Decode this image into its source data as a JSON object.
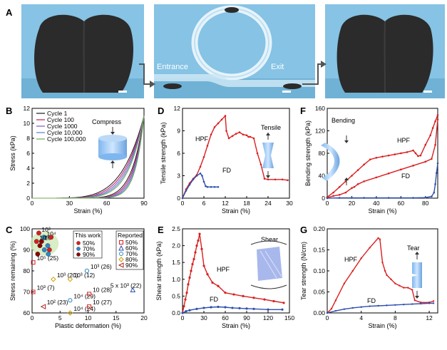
{
  "panel_letters": {
    "a": "A",
    "b": "B",
    "c": "C",
    "d": "D",
    "e": "E",
    "f": "F",
    "g": "G"
  },
  "panel_a": {
    "entrance": "Entrance",
    "exit": "Exit"
  },
  "colors": {
    "red": "#d91f1f",
    "blue": "#2d4fae",
    "photo_bg": "#86c3e4",
    "sponge": "#2b2b2b"
  },
  "chart_data": [
    {
      "id": "B",
      "type": "line",
      "xlabel": "Strain (%)",
      "ylabel": "Stress (kPa)",
      "xlim": [
        0,
        90
      ],
      "ylim": [
        0,
        12
      ],
      "xticks": [
        "0",
        "30",
        "60",
        "90"
      ],
      "yticks": [
        "0",
        "2",
        "4",
        "6",
        "8",
        "10",
        "12"
      ],
      "annotation": "Compress",
      "series": [
        {
          "name": "Cycle 1",
          "color": "#1a1a1a",
          "k": 5.1
        },
        {
          "name": "Cycle 100",
          "color": "#c2185b",
          "k": 5.6
        },
        {
          "name": "Cycle 1000",
          "color": "#7e57c2",
          "k": 6.1
        },
        {
          "name": "Cycle 10,000",
          "color": "#5a7fd6",
          "k": 6.6
        },
        {
          "name": "Cycle 100,000",
          "color": "#6aa84f",
          "k": 7.1
        }
      ],
      "peak": [
        90,
        11
      ]
    },
    {
      "id": "C",
      "type": "scatter",
      "xlabel": "Plastic deformation (%)",
      "ylabel": "Stress remaining (%)",
      "xlim": [
        0,
        20
      ],
      "ylim": [
        60,
        100
      ],
      "xticks": [
        "0",
        "5",
        "10",
        "15",
        "20"
      ],
      "yticks": [
        "60",
        "70",
        "80",
        "90",
        "100"
      ],
      "legend_this_work": {
        "title": "This work",
        "entries": [
          "50%",
          "70%",
          "90%"
        ]
      },
      "legend_reported": {
        "title": "Reported",
        "entries": [
          "50%",
          "60%",
          "70%",
          "80%",
          "90%"
        ]
      },
      "this_work": [
        {
          "x": 1.2,
          "y": 98,
          "label": "10³"
        },
        {
          "x": 2.1,
          "y": 96,
          "label": "10⁴"
        },
        {
          "x": 1.7,
          "y": 94,
          "label": "10⁵"
        },
        {
          "x": 0.8,
          "y": 94,
          "label": "10⁵"
        },
        {
          "x": 2.8,
          "y": 92,
          "label": ""
        },
        {
          "x": 1.4,
          "y": 92,
          "label": ""
        },
        {
          "x": 3.1,
          "y": 90,
          "label": ""
        },
        {
          "x": 2.2,
          "y": 90,
          "label": ""
        },
        {
          "x": 1.0,
          "y": 88,
          "label": ""
        },
        {
          "x": 3.4,
          "y": 96,
          "label": ""
        },
        {
          "x": 2.9,
          "y": 88,
          "label": ""
        }
      ],
      "reported": [
        {
          "x": 0.2,
          "y": 84,
          "marker": "square",
          "color": "#d91f1f",
          "label": "10⁵ (25)"
        },
        {
          "x": 0.2,
          "y": 70,
          "marker": "square",
          "color": "#d91f1f",
          "label": "10³ (7)"
        },
        {
          "x": 2.0,
          "y": 63,
          "marker": "triangle-left",
          "color": "#b22222",
          "label": "10² (23)"
        },
        {
          "x": 3.8,
          "y": 76,
          "marker": "diamond",
          "color": "#c8a000",
          "label": "10³ (20)"
        },
        {
          "x": 6.8,
          "y": 76,
          "marker": "diamond",
          "color": "#c8a000",
          "label": "10³ (12)"
        },
        {
          "x": 6.8,
          "y": 60,
          "marker": "diamond",
          "color": "#c8a000",
          "label": "10⁴ (24)"
        },
        {
          "x": 9.8,
          "y": 80,
          "marker": "circle",
          "color": "#2d88c8",
          "label": "10³ (26)"
        },
        {
          "x": 6.8,
          "y": 66,
          "marker": "circle",
          "color": "#2d88c8",
          "label": "10⁴ (29)"
        },
        {
          "x": 10.2,
          "y": 69,
          "marker": "square",
          "color": "#d91f1f",
          "label": "10 (28)"
        },
        {
          "x": 10.2,
          "y": 63,
          "marker": "square",
          "color": "#d91f1f",
          "label": "10 (27)"
        },
        {
          "x": 18.0,
          "y": 71,
          "marker": "triangle-up",
          "color": "#2d4fae",
          "label": "5 x 10³ (22)"
        }
      ]
    },
    {
      "id": "D",
      "type": "line",
      "xlabel": "Strain (%)",
      "ylabel": "Tensile strength (kPa)",
      "xlim": [
        0,
        30
      ],
      "ylim": [
        0,
        12
      ],
      "xticks": [
        "0",
        "6",
        "12",
        "18",
        "24",
        "30"
      ],
      "yticks": [
        "0",
        "3",
        "6",
        "9",
        "12"
      ],
      "annotation": "Tensile",
      "series": [
        {
          "name": "HPF",
          "color": "#d91f1f",
          "x": [
            0,
            1,
            2,
            3,
            4,
            5,
            6,
            7,
            8,
            9,
            10,
            11,
            12,
            12.3,
            13,
            14,
            15,
            16,
            17,
            18,
            18.5,
            19,
            20,
            21,
            22,
            23,
            24,
            26,
            28,
            29.5
          ],
          "y": [
            0,
            1.2,
            2,
            2.6,
            3.1,
            4.2,
            5.5,
            7,
            8.5,
            9.5,
            10,
            10.5,
            11,
            9,
            8,
            8.3,
            8.6,
            8.8,
            8.5,
            8.4,
            8.2,
            8.2,
            8,
            6,
            4.5,
            2.6,
            2.5,
            2.5,
            2.5,
            2.4
          ]
        },
        {
          "name": "FD",
          "color": "#2d4fae",
          "x": [
            0,
            1,
            2,
            3,
            4,
            5,
            5.5,
            6,
            6.5,
            7,
            8,
            9,
            10
          ],
          "y": [
            0,
            1,
            1.8,
            2.5,
            3,
            3.3,
            3.0,
            2.2,
            1.6,
            1.5,
            1.5,
            1.5,
            1.5
          ]
        }
      ]
    },
    {
      "id": "E",
      "type": "line",
      "xlabel": "Strain (%)",
      "ylabel": "Shear strength (kPa)",
      "xlim": [
        0,
        150
      ],
      "ylim": [
        0,
        2.5
      ],
      "xticks": [
        "0",
        "30",
        "60",
        "90",
        "120",
        "150"
      ],
      "yticks": [
        "0.0",
        "0.5",
        "1.0",
        "1.5",
        "2.0",
        "2.5"
      ],
      "annotation": "Shear",
      "series": [
        {
          "name": "HPF",
          "color": "#d91f1f",
          "x": [
            0,
            2,
            4,
            6,
            8,
            10,
            12,
            14,
            16,
            18,
            20,
            22,
            24,
            27,
            30,
            35,
            42,
            50,
            60,
            72,
            85,
            100,
            115,
            128,
            142
          ],
          "y": [
            0,
            0.2,
            0.4,
            0.6,
            0.85,
            1.05,
            1.25,
            1.45,
            1.6,
            1.8,
            2.0,
            2.15,
            2.35,
            1.9,
            1.4,
            1.15,
            0.9,
            0.8,
            0.6,
            0.55,
            0.5,
            0.45,
            0.4,
            0.35,
            0.3
          ]
        },
        {
          "name": "FD",
          "color": "#2d4fae",
          "x": [
            0,
            5,
            10,
            20,
            30,
            40,
            50,
            60,
            70,
            80,
            90,
            100,
            120,
            140
          ],
          "y": [
            0,
            0.05,
            0.08,
            0.12,
            0.15,
            0.17,
            0.18,
            0.17,
            0.15,
            0.14,
            0.13,
            0.12,
            0.1,
            0.1
          ]
        }
      ]
    },
    {
      "id": "F",
      "type": "line",
      "xlabel": "Strain (%)",
      "ylabel": "Bending strength (kPa)",
      "xlim": [
        0,
        90
      ],
      "ylim": [
        0,
        160
      ],
      "xticks": [
        "0",
        "20",
        "40",
        "60",
        "80"
      ],
      "yticks": [
        "0",
        "40",
        "80",
        "120",
        "160"
      ],
      "annotation": "Bending",
      "series": [
        {
          "name": "HPF",
          "color": "#d91f1f",
          "x": [
            0,
            5,
            10,
            15,
            20,
            25,
            30,
            35,
            40,
            45,
            50,
            55,
            60,
            65,
            70,
            72,
            74,
            76,
            80,
            84,
            86,
            88,
            90
          ],
          "y": [
            2,
            10,
            20,
            30,
            40,
            50,
            60,
            69,
            72,
            74,
            76,
            78,
            80,
            82,
            85,
            80,
            75,
            76,
            95,
            112,
            125,
            137,
            148
          ]
        },
        {
          "name": "HPF lower",
          "color": "#d91f1f",
          "x": [
            0,
            5,
            10,
            15,
            20,
            22,
            25,
            30,
            40,
            50,
            60,
            70,
            80,
            85,
            88,
            90
          ],
          "y": [
            1,
            4,
            6,
            10,
            18,
            20,
            25,
            30,
            37,
            44,
            51,
            58,
            65,
            70,
            95,
            140
          ]
        },
        {
          "name": "FD",
          "color": "#2d4fae",
          "x": [
            0,
            10,
            20,
            30,
            40,
            50,
            60,
            70,
            80,
            85,
            87,
            88,
            89,
            90
          ],
          "y": [
            0,
            0.5,
            0.5,
            0.5,
            0.5,
            0.5,
            0.5,
            0.5,
            1,
            3,
            10,
            25,
            45,
            62
          ]
        }
      ]
    },
    {
      "id": "G",
      "type": "line",
      "xlabel": "Strain (%)",
      "ylabel": "Tear strength (N/cm)",
      "xlim": [
        0,
        13
      ],
      "ylim": [
        0,
        0.2
      ],
      "xticks": [
        "0",
        "4",
        "8",
        "12"
      ],
      "yticks": [
        "0.00",
        "0.05",
        "0.10",
        "0.15",
        "0.20"
      ],
      "annotation": "Tear",
      "series": [
        {
          "name": "HPF",
          "color": "#d91f1f",
          "x": [
            0,
            0.5,
            1,
            2,
            3,
            4,
            5,
            6,
            6.2,
            6.5,
            6.8,
            7,
            7.5,
            8,
            8.5,
            9,
            9.5,
            10,
            10.3,
            11,
            12,
            12.5
          ],
          "y": [
            0,
            0.01,
            0.03,
            0.07,
            0.1,
            0.13,
            0.155,
            0.178,
            0.175,
            0.12,
            0.1,
            0.09,
            0.08,
            0.07,
            0.065,
            0.06,
            0.06,
            0.055,
            0.03,
            0.025,
            0.025,
            0.028
          ]
        },
        {
          "name": "FD",
          "color": "#2d4fae",
          "x": [
            0,
            1,
            2,
            3,
            4,
            5,
            6,
            7,
            8,
            9,
            10,
            11,
            12,
            12.5
          ],
          "y": [
            0,
            0.005,
            0.009,
            0.012,
            0.014,
            0.016,
            0.017,
            0.018,
            0.019,
            0.02,
            0.021,
            0.022,
            0.023,
            0.023
          ]
        }
      ]
    }
  ]
}
